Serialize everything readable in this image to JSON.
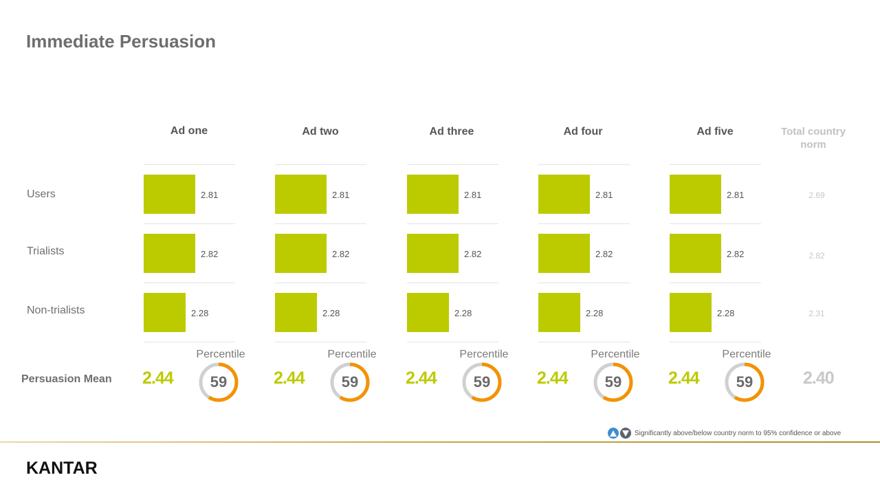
{
  "title": "Immediate Persuasion",
  "chart_data": {
    "type": "bar",
    "columns": [
      "Ad one",
      "Ad two",
      "Ad three",
      "Ad four",
      "Ad five"
    ],
    "rows": [
      "Users",
      "Trialists",
      "Non-trialists"
    ],
    "series": [
      {
        "name": "Users",
        "values": [
          2.81,
          2.81,
          2.81,
          2.81,
          2.81
        ]
      },
      {
        "name": "Trialists",
        "values": [
          2.82,
          2.82,
          2.82,
          2.82,
          2.82
        ]
      },
      {
        "name": "Non-trialists",
        "values": [
          2.28,
          2.28,
          2.28,
          2.28,
          2.28
        ]
      }
    ],
    "value_labels": [
      [
        "2.81",
        "2.81",
        "2.81",
        "2.81",
        "2.81"
      ],
      [
        "2.82",
        "2.82",
        "2.82",
        "2.82",
        "2.82"
      ],
      [
        "2.28",
        "2.28",
        "2.28",
        "2.28",
        "2.28"
      ]
    ],
    "norm_header": "Total country norm",
    "norm_values": [
      "2.69",
      "2.82",
      "2.31"
    ],
    "persuasion_mean_label": "Persuasion Mean",
    "persuasion_means": [
      "2.44",
      "2.44",
      "2.44",
      "2.44",
      "2.44"
    ],
    "norm_mean": "2.40",
    "percentile_label": "Percentile",
    "percentiles": [
      59,
      59,
      59,
      59,
      59
    ],
    "percentile_labels": [
      "59",
      "59",
      "59",
      "59",
      "59"
    ]
  },
  "legend": {
    "text": "Significantly above/below country norm to 95% confidence or above",
    "above_icon": "triangle-up-icon",
    "below_icon": "triangle-down-icon"
  },
  "brand": "KANTAR",
  "colors": {
    "bar": "#bccb00",
    "mean": "#bccb00",
    "donut_fill": "#f39200",
    "donut_track": "#d0d0d0",
    "above": "#3e8ed0",
    "below": "#5a6570",
    "footer_line": "#c7a64a"
  }
}
